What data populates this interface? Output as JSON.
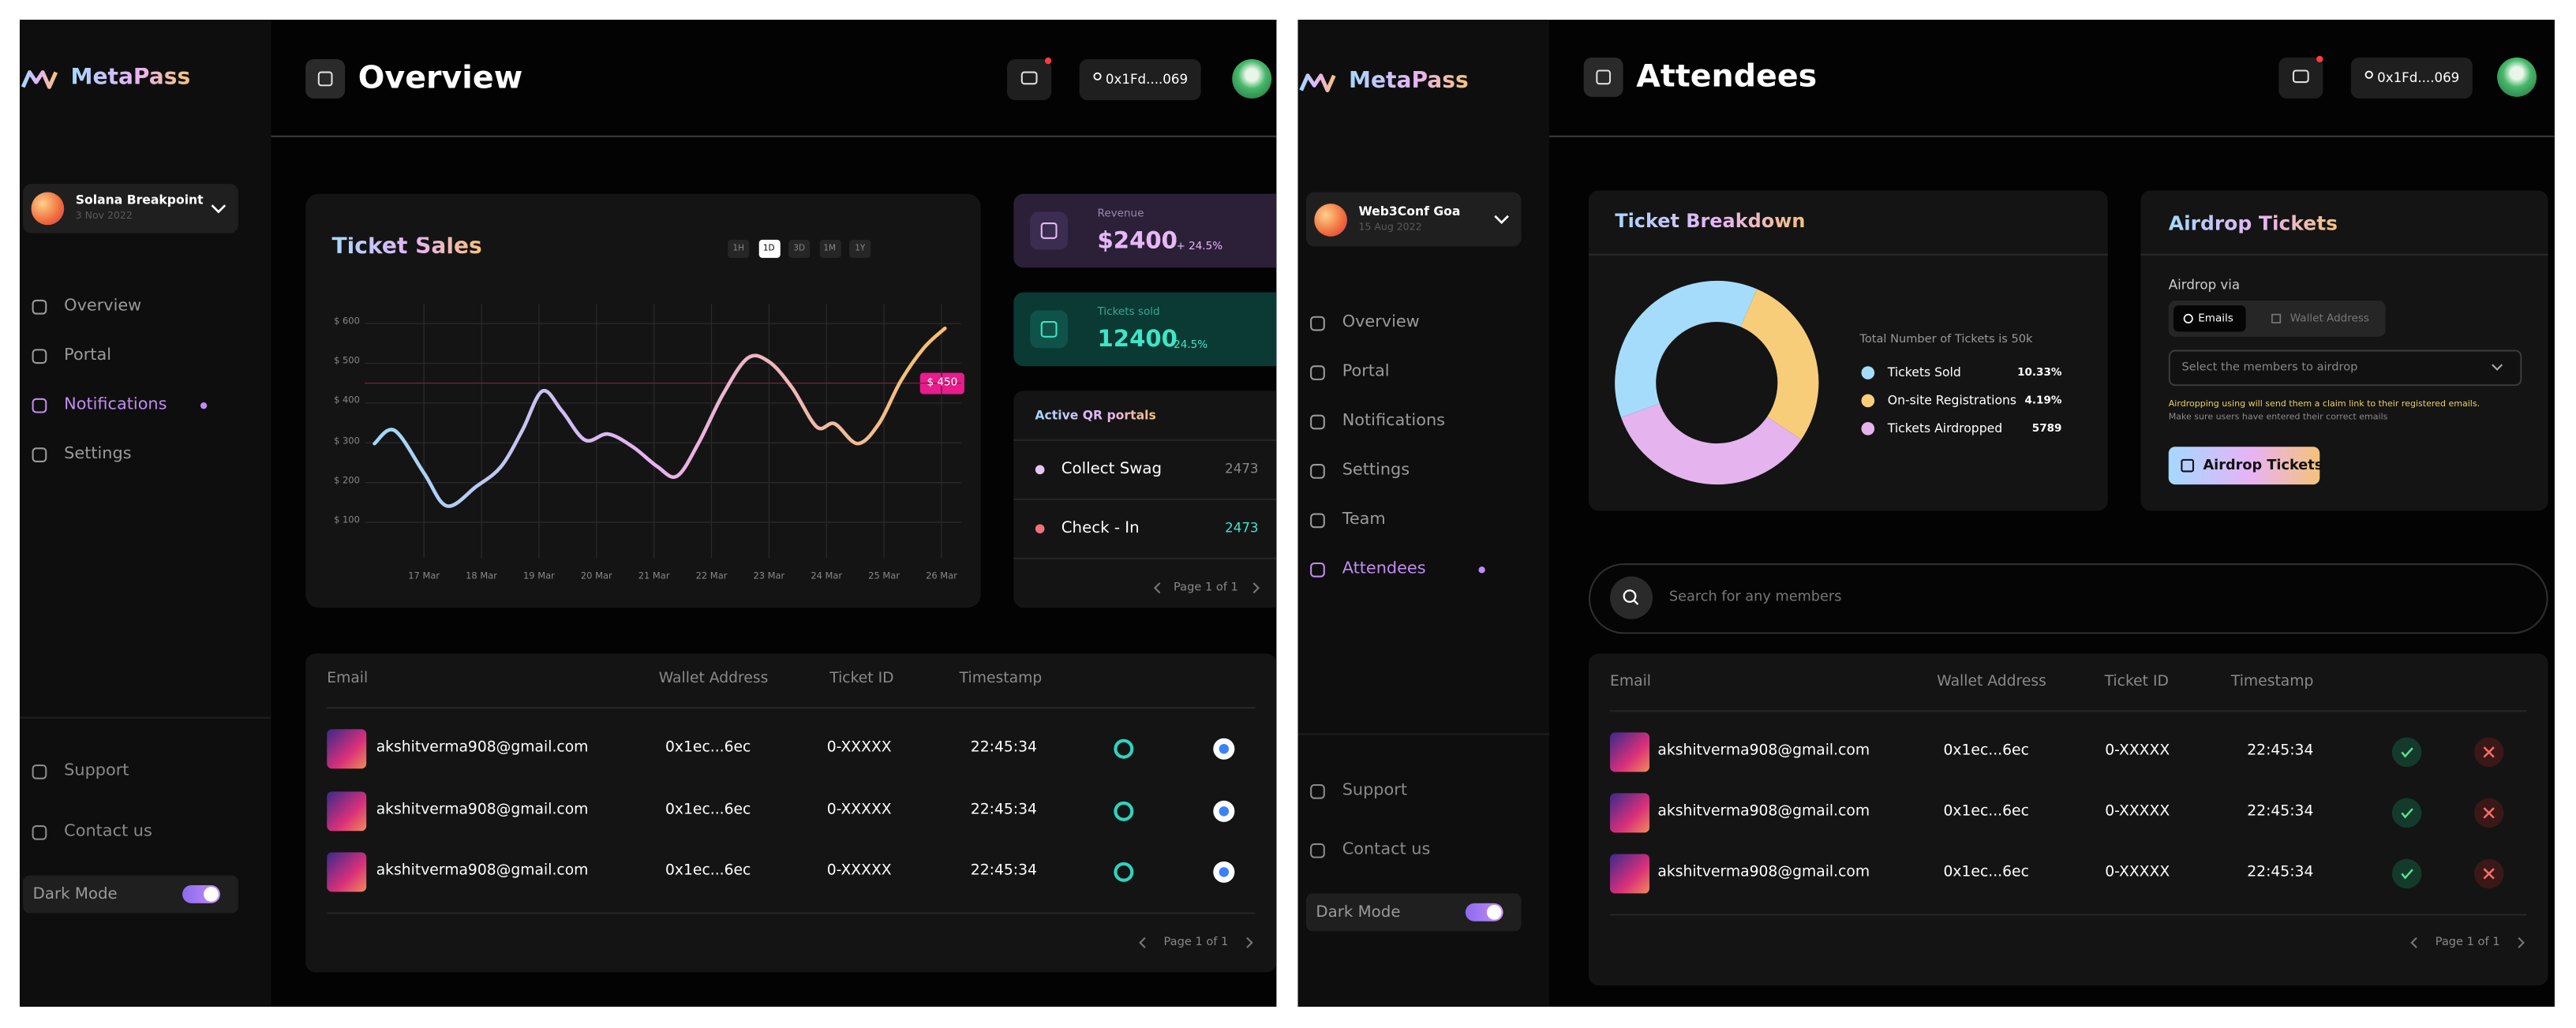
{
  "chart_data": [
    {
      "type": "line",
      "title": "Ticket Sales",
      "x": [
        -0.86,
        -0.51,
        0,
        0.4,
        0.91,
        1.34,
        1.71,
        2.06,
        2.4,
        2.8,
        3.2,
        3.63,
        4.06,
        4.4,
        4.77,
        5.2,
        5.63,
        6,
        6.4,
        6.83,
        7.14,
        7.54,
        7.91,
        8.29,
        8.69,
        9.06
      ],
      "values": [
        298,
        331,
        224,
        141,
        190,
        240,
        331,
        430,
        380,
        307,
        322,
        290,
        240,
        216,
        298,
        422,
        513,
        504,
        439,
        340,
        348,
        298,
        348,
        455,
        538,
        588
      ],
      "xlim": [
        -1.03,
        9.34
      ],
      "ylim": [
        10,
        650
      ],
      "yticks": [
        {
          "value": 100,
          "label": "$ 100"
        },
        {
          "value": 200,
          "label": "$ 200"
        },
        {
          "value": 300,
          "label": "$ 300"
        },
        {
          "value": 400,
          "label": "$ 400"
        },
        {
          "value": 500,
          "label": "$ 500"
        },
        {
          "value": 600,
          "label": "$ 600"
        }
      ],
      "xticks": [
        {
          "value": 0,
          "label": "17 Mar"
        },
        {
          "value": 1,
          "label": "18 Mar"
        },
        {
          "value": 2,
          "label": "19 Mar"
        },
        {
          "value": 3,
          "label": "20 Mar"
        },
        {
          "value": 4,
          "label": "21 Mar"
        },
        {
          "value": 5,
          "label": "22 Mar"
        },
        {
          "value": 6,
          "label": "23 Mar"
        },
        {
          "value": 7,
          "label": "24 Mar"
        },
        {
          "value": 8,
          "label": "25 Mar"
        },
        {
          "value": 9,
          "label": "26 Mar"
        }
      ],
      "grid": true,
      "colors": [
        "#9fd8f5",
        "#e9b0f0",
        "#f6c06a"
      ],
      "annotation": {
        "label": "$ 450",
        "value": 450
      },
      "ranges": [
        "1H",
        "1D",
        "3D",
        "1M",
        "1Y"
      ],
      "active_range": 1
    },
    {
      "type": "pie",
      "title": "Ticket Breakdown",
      "categories": [
        "Tickets Sold",
        "On-site  Registrations",
        "Tickets Airdropped"
      ],
      "values": [
        37,
        28,
        35
      ],
      "colors": [
        "#a5dcfb",
        "#f8cd7a",
        "#e5b3ee"
      ],
      "figures": [
        "10.33%",
        "4.19%",
        "5789"
      ],
      "note": "Total Number of Tickets is 50k"
    }
  ],
  "overview": {
    "brand": "MetaPass",
    "event": {
      "name": "Solana Breakpoint",
      "date": "3 Nov 2022"
    },
    "nav": [
      "Overview",
      "Portal",
      "Notifications",
      "Settings"
    ],
    "nav_active": 2,
    "footer_nav": [
      "Support",
      "Contact us"
    ],
    "dark_mode": "Dark Mode",
    "title": "Overview",
    "wallet": "0x1Fd....069",
    "stats": [
      {
        "label": "Revenue",
        "value": "$2400",
        "change": "+ 24.5%"
      },
      {
        "label": "Tickets sold",
        "value": "12400",
        "change": "- 24.5%"
      }
    ],
    "qr": {
      "title": "Active QR portals",
      "items": [
        {
          "name": "Collect Swag",
          "count": "2473"
        },
        {
          "name": "Check - In",
          "count": "2473"
        }
      ],
      "pager": "Page 1 of 1"
    },
    "table": {
      "columns": [
        "Email",
        "Wallet Address",
        "Ticket ID",
        "Timestamp"
      ],
      "rows": [
        [
          "akshitverma908@gmail.com",
          "0x1ec...6ec",
          "0-XXXXX",
          "22:45:34"
        ],
        [
          "akshitverma908@gmail.com",
          "0x1ec...6ec",
          "0-XXXXX",
          "22:45:34"
        ],
        [
          "akshitverma908@gmail.com",
          "0x1ec...6ec",
          "0-XXXXX",
          "22:45:34"
        ]
      ],
      "pager": "Page 1 of 1"
    }
  },
  "attendees": {
    "brand": "MetaPass",
    "event": {
      "name": "Web3Conf Goa",
      "date": "15 Aug 2022"
    },
    "nav": [
      "Overview",
      "Portal",
      "Notifications",
      "Settings",
      "Team",
      "Attendees"
    ],
    "nav_active": 5,
    "footer_nav": [
      "Support",
      "Contact us"
    ],
    "dark_mode": "Dark Mode",
    "title": "Attendees",
    "wallet": "0x1Fd....069",
    "airdrop": {
      "title": "Airdrop Tickets",
      "label": "Airdrop via",
      "tabs": [
        "Emails",
        "Wallet Address"
      ],
      "select": "Select the members to airdrop",
      "note": [
        "Airdropping using will send them a claim link to their registered emails.",
        "Make sure users have entered their correct emails"
      ],
      "button": "Airdrop Tickets"
    },
    "search": "Search for any members",
    "table": {
      "columns": [
        "Email",
        "Wallet Address",
        "Ticket ID",
        "Timestamp"
      ],
      "rows": [
        [
          "akshitverma908@gmail.com",
          "0x1ec...6ec",
          "0-XXXXX",
          "22:45:34"
        ],
        [
          "akshitverma908@gmail.com",
          "0x1ec...6ec",
          "0-XXXXX",
          "22:45:34"
        ],
        [
          "akshitverma908@gmail.com",
          "0x1ec...6ec",
          "0-XXXXX",
          "22:45:34"
        ]
      ],
      "pager": "Page 1 of 1"
    }
  }
}
